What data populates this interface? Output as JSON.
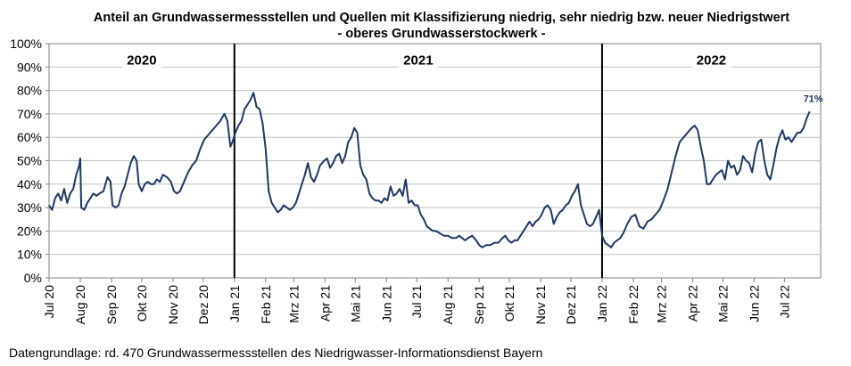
{
  "chart_data": {
    "type": "line",
    "title": "Anteil an Grundwassermessstellen und Quellen mit Klassifizierung niedrig, sehr niedrig bzw. neuer Niedrigstwert",
    "subtitle": "- oberes Grundwasserstockwerk -",
    "xlabel": "",
    "ylabel": "",
    "ylim": [
      0,
      100
    ],
    "yticks": [
      "0%",
      "10%",
      "20%",
      "30%",
      "40%",
      "50%",
      "60%",
      "70%",
      "80%",
      "90%",
      "100%"
    ],
    "xticks": [
      "Jul 20",
      "Aug 20",
      "Sep 20",
      "Okt 20",
      "Nov 20",
      "Dez 20",
      "Jan 21",
      "Feb 21",
      "Mrz 21",
      "Apr 21",
      "Mai 21",
      "Jun 21",
      "Jul 21",
      "Aug 21",
      "Sep 21",
      "Okt 21",
      "Nov 21",
      "Dez 21",
      "Jan 22",
      "Feb 22",
      "Mrz 22",
      "Apr 22",
      "Mai 22",
      "Jun 22",
      "Jul 22"
    ],
    "year_labels": [
      "2020",
      "2021",
      "2022"
    ],
    "year_dividers": [
      "2021-01-01",
      "2022-01-01"
    ],
    "grid": true,
    "line_color": "#1f3864",
    "end_label": "71%",
    "series": [
      {
        "points": [
          [
            "2020-07-01",
            31
          ],
          [
            "2020-07-04",
            29
          ],
          [
            "2020-07-07",
            34
          ],
          [
            "2020-07-10",
            36
          ],
          [
            "2020-07-13",
            33
          ],
          [
            "2020-07-16",
            38
          ],
          [
            "2020-07-19",
            32
          ],
          [
            "2020-07-22",
            36
          ],
          [
            "2020-07-25",
            38
          ],
          [
            "2020-07-28",
            44
          ],
          [
            "2020-07-31",
            48
          ],
          [
            "2020-08-01",
            51
          ],
          [
            "2020-08-02",
            30
          ],
          [
            "2020-08-05",
            29
          ],
          [
            "2020-08-08",
            32
          ],
          [
            "2020-08-11",
            34
          ],
          [
            "2020-08-14",
            36
          ],
          [
            "2020-08-17",
            35
          ],
          [
            "2020-08-20",
            36
          ],
          [
            "2020-08-24",
            37
          ],
          [
            "2020-08-28",
            43
          ],
          [
            "2020-08-31",
            41
          ],
          [
            "2020-09-02",
            31
          ],
          [
            "2020-09-05",
            30
          ],
          [
            "2020-09-08",
            31
          ],
          [
            "2020-09-11",
            36
          ],
          [
            "2020-09-14",
            39
          ],
          [
            "2020-09-17",
            44
          ],
          [
            "2020-09-20",
            49
          ],
          [
            "2020-09-23",
            52
          ],
          [
            "2020-09-26",
            50
          ],
          [
            "2020-09-28",
            40
          ],
          [
            "2020-10-01",
            37
          ],
          [
            "2020-10-04",
            40
          ],
          [
            "2020-10-07",
            41
          ],
          [
            "2020-10-10",
            40
          ],
          [
            "2020-10-13",
            40
          ],
          [
            "2020-10-16",
            42
          ],
          [
            "2020-10-19",
            41
          ],
          [
            "2020-10-22",
            44
          ],
          [
            "2020-10-26",
            43
          ],
          [
            "2020-10-30",
            41
          ],
          [
            "2020-11-02",
            37
          ],
          [
            "2020-11-05",
            36
          ],
          [
            "2020-11-08",
            37
          ],
          [
            "2020-11-12",
            41
          ],
          [
            "2020-11-16",
            45
          ],
          [
            "2020-11-20",
            48
          ],
          [
            "2020-11-24",
            50
          ],
          [
            "2020-11-28",
            55
          ],
          [
            "2020-12-02",
            59
          ],
          [
            "2020-12-06",
            61
          ],
          [
            "2020-12-10",
            63
          ],
          [
            "2020-12-14",
            65
          ],
          [
            "2020-12-18",
            67
          ],
          [
            "2020-12-22",
            70
          ],
          [
            "2020-12-25",
            67
          ],
          [
            "2020-12-28",
            56
          ],
          [
            "2020-12-30",
            58
          ],
          [
            "2021-01-02",
            62
          ],
          [
            "2021-01-05",
            65
          ],
          [
            "2021-01-08",
            67
          ],
          [
            "2021-01-11",
            72
          ],
          [
            "2021-01-14",
            74
          ],
          [
            "2021-01-17",
            76
          ],
          [
            "2021-01-20",
            79
          ],
          [
            "2021-01-23",
            73
          ],
          [
            "2021-01-26",
            72
          ],
          [
            "2021-01-29",
            66
          ],
          [
            "2021-02-01",
            55
          ],
          [
            "2021-02-04",
            37
          ],
          [
            "2021-02-07",
            32
          ],
          [
            "2021-02-10",
            30
          ],
          [
            "2021-02-13",
            28
          ],
          [
            "2021-02-16",
            29
          ],
          [
            "2021-02-19",
            31
          ],
          [
            "2021-02-22",
            30
          ],
          [
            "2021-02-25",
            29
          ],
          [
            "2021-02-28",
            30
          ],
          [
            "2021-03-03",
            32
          ],
          [
            "2021-03-06",
            36
          ],
          [
            "2021-03-09",
            40
          ],
          [
            "2021-03-12",
            44
          ],
          [
            "2021-03-15",
            49
          ],
          [
            "2021-03-18",
            43
          ],
          [
            "2021-03-21",
            41
          ],
          [
            "2021-03-24",
            44
          ],
          [
            "2021-03-27",
            48
          ],
          [
            "2021-03-31",
            50
          ],
          [
            "2021-04-03",
            51
          ],
          [
            "2021-04-06",
            47
          ],
          [
            "2021-04-09",
            49
          ],
          [
            "2021-04-12",
            52
          ],
          [
            "2021-04-15",
            53
          ],
          [
            "2021-04-18",
            49
          ],
          [
            "2021-04-21",
            52
          ],
          [
            "2021-04-24",
            58
          ],
          [
            "2021-04-27",
            60
          ],
          [
            "2021-04-30",
            64
          ],
          [
            "2021-05-03",
            62
          ],
          [
            "2021-05-06",
            48
          ],
          [
            "2021-05-09",
            44
          ],
          [
            "2021-05-12",
            42
          ],
          [
            "2021-05-15",
            36
          ],
          [
            "2021-05-18",
            34
          ],
          [
            "2021-05-21",
            33
          ],
          [
            "2021-05-24",
            33
          ],
          [
            "2021-05-27",
            32
          ],
          [
            "2021-05-30",
            34
          ],
          [
            "2021-06-02",
            33
          ],
          [
            "2021-06-05",
            39
          ],
          [
            "2021-06-08",
            35
          ],
          [
            "2021-06-11",
            36
          ],
          [
            "2021-06-14",
            38
          ],
          [
            "2021-06-17",
            35
          ],
          [
            "2021-06-20",
            42
          ],
          [
            "2021-06-23",
            32
          ],
          [
            "2021-06-26",
            33
          ],
          [
            "2021-06-29",
            31
          ],
          [
            "2021-07-02",
            31
          ],
          [
            "2021-07-05",
            27
          ],
          [
            "2021-07-08",
            25
          ],
          [
            "2021-07-11",
            22
          ],
          [
            "2021-07-14",
            21
          ],
          [
            "2021-07-17",
            20
          ],
          [
            "2021-07-20",
            20
          ],
          [
            "2021-07-24",
            19
          ],
          [
            "2021-07-28",
            18
          ],
          [
            "2021-08-01",
            18
          ],
          [
            "2021-08-05",
            17
          ],
          [
            "2021-08-09",
            17
          ],
          [
            "2021-08-12",
            18
          ],
          [
            "2021-08-15",
            17
          ],
          [
            "2021-08-18",
            16
          ],
          [
            "2021-08-21",
            17
          ],
          [
            "2021-08-25",
            18
          ],
          [
            "2021-08-29",
            16
          ],
          [
            "2021-09-01",
            14
          ],
          [
            "2021-09-04",
            13
          ],
          [
            "2021-09-08",
            14
          ],
          [
            "2021-09-12",
            14
          ],
          [
            "2021-09-16",
            15
          ],
          [
            "2021-09-20",
            15
          ],
          [
            "2021-09-24",
            17
          ],
          [
            "2021-09-27",
            18
          ],
          [
            "2021-09-30",
            16
          ],
          [
            "2021-10-03",
            15
          ],
          [
            "2021-10-06",
            16
          ],
          [
            "2021-10-09",
            16
          ],
          [
            "2021-10-12",
            18
          ],
          [
            "2021-10-15",
            20
          ],
          [
            "2021-10-18",
            22
          ],
          [
            "2021-10-21",
            24
          ],
          [
            "2021-10-24",
            22
          ],
          [
            "2021-10-27",
            24
          ],
          [
            "2021-10-30",
            25
          ],
          [
            "2021-11-02",
            27
          ],
          [
            "2021-11-05",
            30
          ],
          [
            "2021-11-08",
            31
          ],
          [
            "2021-11-11",
            29
          ],
          [
            "2021-11-14",
            23
          ],
          [
            "2021-11-17",
            26
          ],
          [
            "2021-11-20",
            28
          ],
          [
            "2021-11-23",
            29
          ],
          [
            "2021-11-26",
            31
          ],
          [
            "2021-11-29",
            32
          ],
          [
            "2021-12-02",
            35
          ],
          [
            "2021-12-05",
            37
          ],
          [
            "2021-12-08",
            40
          ],
          [
            "2021-12-11",
            31
          ],
          [
            "2021-12-14",
            27
          ],
          [
            "2021-12-17",
            23
          ],
          [
            "2021-12-20",
            22
          ],
          [
            "2021-12-23",
            23
          ],
          [
            "2021-12-26",
            26
          ],
          [
            "2021-12-29",
            29
          ],
          [
            "2022-01-01",
            18
          ],
          [
            "2022-01-04",
            15
          ],
          [
            "2022-01-07",
            14
          ],
          [
            "2022-01-10",
            13
          ],
          [
            "2022-01-13",
            15
          ],
          [
            "2022-01-16",
            16
          ],
          [
            "2022-01-19",
            17
          ],
          [
            "2022-01-22",
            19
          ],
          [
            "2022-01-26",
            23
          ],
          [
            "2022-01-30",
            26
          ],
          [
            "2022-02-03",
            27
          ],
          [
            "2022-02-07",
            22
          ],
          [
            "2022-02-11",
            21
          ],
          [
            "2022-02-15",
            24
          ],
          [
            "2022-02-19",
            25
          ],
          [
            "2022-02-23",
            27
          ],
          [
            "2022-02-27",
            29
          ],
          [
            "2022-03-03",
            33
          ],
          [
            "2022-03-07",
            38
          ],
          [
            "2022-03-11",
            45
          ],
          [
            "2022-03-15",
            52
          ],
          [
            "2022-03-19",
            58
          ],
          [
            "2022-03-23",
            60
          ],
          [
            "2022-03-27",
            62
          ],
          [
            "2022-03-31",
            64
          ],
          [
            "2022-04-03",
            65
          ],
          [
            "2022-04-06",
            63
          ],
          [
            "2022-04-09",
            56
          ],
          [
            "2022-04-12",
            50
          ],
          [
            "2022-04-15",
            40
          ],
          [
            "2022-04-18",
            40
          ],
          [
            "2022-04-21",
            42
          ],
          [
            "2022-04-24",
            44
          ],
          [
            "2022-04-27",
            45
          ],
          [
            "2022-04-30",
            46
          ],
          [
            "2022-05-03",
            42
          ],
          [
            "2022-05-06",
            50
          ],
          [
            "2022-05-09",
            47
          ],
          [
            "2022-05-12",
            48
          ],
          [
            "2022-05-15",
            44
          ],
          [
            "2022-05-18",
            46
          ],
          [
            "2022-05-21",
            52
          ],
          [
            "2022-05-24",
            50
          ],
          [
            "2022-05-27",
            49
          ],
          [
            "2022-05-30",
            45
          ],
          [
            "2022-06-02",
            53
          ],
          [
            "2022-06-05",
            58
          ],
          [
            "2022-06-08",
            59
          ],
          [
            "2022-06-11",
            50
          ],
          [
            "2022-06-14",
            44
          ],
          [
            "2022-06-17",
            42
          ],
          [
            "2022-06-20",
            48
          ],
          [
            "2022-06-23",
            55
          ],
          [
            "2022-06-26",
            60
          ],
          [
            "2022-06-29",
            63
          ],
          [
            "2022-07-02",
            59
          ],
          [
            "2022-07-05",
            60
          ],
          [
            "2022-07-08",
            58
          ],
          [
            "2022-07-11",
            60
          ],
          [
            "2022-07-14",
            62
          ],
          [
            "2022-07-17",
            62
          ],
          [
            "2022-07-20",
            64
          ],
          [
            "2022-07-23",
            68
          ],
          [
            "2022-07-26",
            71
          ]
        ]
      }
    ]
  },
  "header": {
    "title_line1": "Anteil an Grundwassermessstellen und Quellen mit Klassifizierung niedrig, sehr niedrig bzw. neuer Niedrigstwert",
    "title_line2": "- oberes Grundwasserstockwerk -"
  },
  "footer": {
    "source": "Datengrundlage:  rd. 470 Grundwassermessstellen  des Niedrigwasser-Informationsdienst  Bayern"
  }
}
